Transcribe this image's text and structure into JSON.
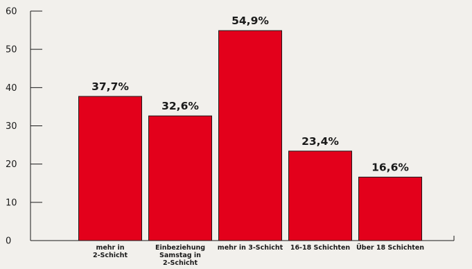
{
  "chart_data": {
    "type": "bar",
    "categories": [
      [
        "mehr in",
        "2-Schicht"
      ],
      [
        "Einbeziehung",
        "Samstag in",
        "2-Schicht"
      ],
      [
        "mehr in 3-Schicht"
      ],
      [
        "16-18 Schichten"
      ],
      [
        "Über 18 Schichten"
      ]
    ],
    "values": [
      37.7,
      32.6,
      54.9,
      23.4,
      16.6
    ],
    "value_labels": [
      "37,7%",
      "32,6%",
      "54,9%",
      "23,4%",
      "16,6%"
    ],
    "yticks": [
      0,
      10,
      20,
      30,
      40,
      50,
      60
    ],
    "ylim": [
      0,
      60
    ],
    "grid": false,
    "colors": {
      "bar": "#e3001b",
      "bar_outline": "#1a1a1a",
      "axis": "#1a1a1a",
      "background": "#f2f0ec"
    }
  }
}
